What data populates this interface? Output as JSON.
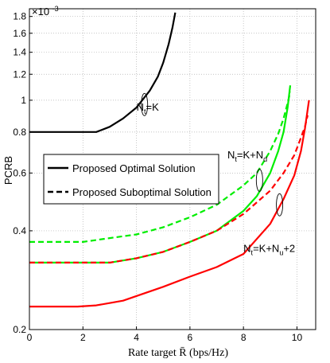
{
  "chart_data": {
    "type": "line",
    "title": "",
    "xlabel": "Rate target R̄ (bps/Hz)",
    "ylabel": "PCRB",
    "y_multiplier_label": "×10",
    "y_multiplier_exponent": "-3",
    "yscale": "log",
    "xlim": [
      0,
      10.7
    ],
    "ylim": [
      0.2,
      1.9
    ],
    "grid": true,
    "xticks": [
      0,
      2,
      4,
      6,
      8,
      10
    ],
    "xtick_labels": [
      "0",
      "2",
      "4",
      "6",
      "8",
      "10"
    ],
    "yticks": [
      0.2,
      0.4,
      0.6,
      0.8,
      1.0,
      1.2,
      1.4,
      1.6,
      1.8
    ],
    "ytick_labels": [
      "0.2",
      "0.4",
      "0.6",
      "0.8",
      "1",
      "1.2",
      "1.4",
      "1.6",
      "1.8"
    ],
    "series": [
      {
        "group": "Nt=K",
        "style": "solid",
        "color": "#000000",
        "x": [
          0,
          0.5,
          1,
          1.5,
          2,
          2.5,
          3,
          3.5,
          4,
          4.5,
          4.8,
          5.0,
          5.2,
          5.35,
          5.45
        ],
        "y": [
          0.8,
          0.8,
          0.8,
          0.8,
          0.8,
          0.8,
          0.83,
          0.88,
          0.95,
          1.07,
          1.18,
          1.3,
          1.48,
          1.67,
          1.85
        ]
      },
      {
        "group": "Nt=K+Nd",
        "style": "solid",
        "color": "#00ee00",
        "x": [
          0,
          1,
          2,
          3,
          4,
          5,
          6,
          7,
          8,
          8.5,
          9,
          9.3,
          9.5,
          9.65,
          9.75
        ],
        "y": [
          0.32,
          0.32,
          0.32,
          0.32,
          0.33,
          0.345,
          0.37,
          0.4,
          0.46,
          0.51,
          0.6,
          0.7,
          0.8,
          0.95,
          1.11
        ]
      },
      {
        "group": "Nt=K+Nd",
        "style": "dashed",
        "color": "#00ee00",
        "x": [
          0,
          1,
          2,
          3,
          4,
          5,
          6,
          7,
          8,
          8.5,
          9,
          9.3,
          9.5,
          9.65,
          9.75
        ],
        "y": [
          0.37,
          0.37,
          0.37,
          0.38,
          0.39,
          0.41,
          0.44,
          0.48,
          0.55,
          0.6,
          0.7,
          0.79,
          0.88,
          0.98,
          1.06
        ]
      },
      {
        "group": "Nt=K+Nu+2",
        "style": "solid",
        "color": "#ff0000",
        "x": [
          0,
          1,
          1.8,
          2.5,
          3.5,
          5,
          6,
          7,
          8,
          9,
          9.5,
          9.9,
          10.15,
          10.3,
          10.45
        ],
        "y": [
          0.235,
          0.235,
          0.235,
          0.237,
          0.245,
          0.27,
          0.29,
          0.31,
          0.34,
          0.42,
          0.5,
          0.59,
          0.7,
          0.82,
          1.0
        ]
      },
      {
        "group": "Nt=K+Nu+2",
        "style": "dashed",
        "color": "#ff0000",
        "x": [
          0,
          1,
          2,
          3,
          4,
          5,
          6,
          7,
          8,
          9,
          9.5,
          9.9,
          10.1,
          10.3,
          10.4
        ],
        "y": [
          0.32,
          0.32,
          0.32,
          0.32,
          0.33,
          0.345,
          0.37,
          0.4,
          0.45,
          0.53,
          0.6,
          0.68,
          0.75,
          0.83,
          0.9
        ]
      }
    ],
    "legend": {
      "placement": "center-left",
      "entries": [
        {
          "label": "Proposed Optimal Solution",
          "style": "solid",
          "color": "#000000"
        },
        {
          "label": "Proposed Suboptimal Solution",
          "style": "dashed",
          "color": "#000000"
        }
      ]
    },
    "annotations": [
      {
        "main": "N",
        "sub": "t",
        "rest": "=K",
        "x": 4.0,
        "y": 0.93
      },
      {
        "main": "N",
        "sub": "t",
        "rest": "=K+N",
        "sub2": "d",
        "x": 7.4,
        "y": 0.665
      },
      {
        "main": "N",
        "sub": "t",
        "rest": "=K+N",
        "sub2": "u",
        "rest2": "+2",
        "x": 8.0,
        "y": 0.345
      }
    ],
    "ellipses": [
      {
        "x": 4.3,
        "y": 0.97
      },
      {
        "x": 8.6,
        "y": 0.57
      },
      {
        "x": 9.35,
        "y": 0.48
      }
    ]
  }
}
